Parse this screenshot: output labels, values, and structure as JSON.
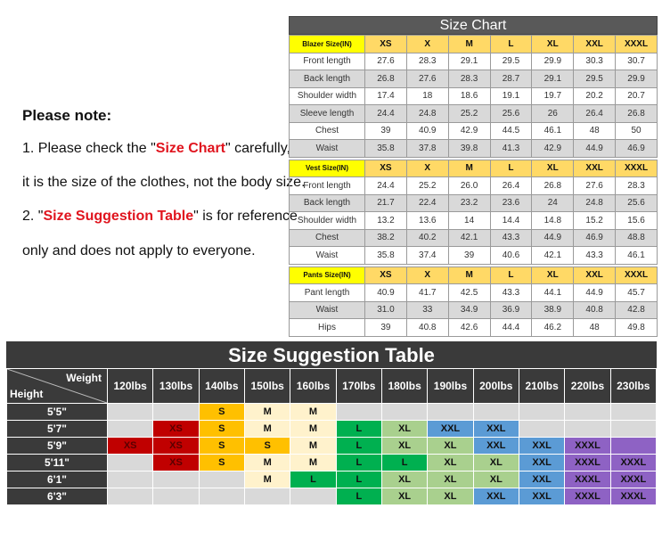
{
  "note": {
    "heading": "Please note:",
    "line1_pre": "1. Please check the \"",
    "line1_red": "Size Chart",
    "line1_post": "\" carefully,",
    "line2": "it is the size of the clothes, not the body size.",
    "line3_pre": "2. \"",
    "line3_red": "Size Suggestion Table",
    "line3_post": "\" is for reference",
    "line4": "only and does not apply to everyone."
  },
  "size_chart": {
    "title": "Size Chart",
    "sizes": [
      "XS",
      "X",
      "M",
      "L",
      "XL",
      "XXL",
      "XXXL"
    ],
    "sections": [
      {
        "label": "Blazer Size(IN)",
        "rows": [
          {
            "name": "Front length",
            "values": [
              "27.6",
              "28.3",
              "29.1",
              "29.5",
              "29.9",
              "30.3",
              "30.7"
            ]
          },
          {
            "name": "Back length",
            "values": [
              "26.8",
              "27.6",
              "28.3",
              "28.7",
              "29.1",
              "29.5",
              "29.9"
            ]
          },
          {
            "name": "Shoulder width",
            "values": [
              "17.4",
              "18",
              "18.6",
              "19.1",
              "19.7",
              "20.2",
              "20.7"
            ]
          },
          {
            "name": "Sleeve length",
            "values": [
              "24.4",
              "24.8",
              "25.2",
              "25.6",
              "26",
              "26.4",
              "26.8"
            ]
          },
          {
            "name": "Chest",
            "values": [
              "39",
              "40.9",
              "42.9",
              "44.5",
              "46.1",
              "48",
              "50"
            ]
          },
          {
            "name": "Waist",
            "values": [
              "35.8",
              "37.8",
              "39.8",
              "41.3",
              "42.9",
              "44.9",
              "46.9"
            ]
          }
        ]
      },
      {
        "label": "Vest Size(IN)",
        "rows": [
          {
            "name": "Front length",
            "values": [
              "24.4",
              "25.2",
              "26.0",
              "26.4",
              "26.8",
              "27.6",
              "28.3"
            ]
          },
          {
            "name": "Back length",
            "values": [
              "21.7",
              "22.4",
              "23.2",
              "23.6",
              "24",
              "24.8",
              "25.6"
            ]
          },
          {
            "name": "Shoulder width",
            "values": [
              "13.2",
              "13.6",
              "14",
              "14.4",
              "14.8",
              "15.2",
              "15.6"
            ]
          },
          {
            "name": "Chest",
            "values": [
              "38.2",
              "40.2",
              "42.1",
              "43.3",
              "44.9",
              "46.9",
              "48.8"
            ]
          },
          {
            "name": "Waist",
            "values": [
              "35.8",
              "37.4",
              "39",
              "40.6",
              "42.1",
              "43.3",
              "46.1"
            ]
          }
        ]
      },
      {
        "label": "Pants Size(IN)",
        "rows": [
          {
            "name": "Pant length",
            "values": [
              "40.9",
              "41.7",
              "42.5",
              "43.3",
              "44.1",
              "44.9",
              "45.7"
            ]
          },
          {
            "name": "Waist",
            "values": [
              "31.0",
              "33",
              "34.9",
              "36.9",
              "38.9",
              "40.8",
              "42.8"
            ]
          },
          {
            "name": "Hips",
            "values": [
              "39",
              "40.8",
              "42.6",
              "44.4",
              "46.2",
              "48",
              "49.8"
            ]
          }
        ]
      }
    ]
  },
  "suggestion": {
    "title": "Size Suggestion Table",
    "weight_label": "Weight",
    "height_label": "Height",
    "weights": [
      "120lbs",
      "130lbs",
      "140lbs",
      "150lbs",
      "160lbs",
      "170lbs",
      "180lbs",
      "190lbs",
      "200lbs",
      "210lbs",
      "220lbs",
      "230lbs"
    ],
    "colors": {
      "": "#d9d9d9",
      "XS": "#c00000",
      "S": "#ffc000",
      "M": "#fff2cc",
      "L": "#00b050",
      "XL": "#a9d08e",
      "XXL": "#5b9bd5",
      "XXXL": "#8e62c4"
    },
    "rows": [
      {
        "height": "5'5\"",
        "cells": [
          "",
          "",
          "S",
          "M",
          "M",
          "",
          "",
          "",
          "",
          "",
          "",
          ""
        ]
      },
      {
        "height": "5'7\"",
        "cells": [
          "",
          "XS",
          "S",
          "M",
          "M",
          "L",
          "XL",
          "XXL",
          "XXL",
          "",
          "",
          ""
        ]
      },
      {
        "height": "5'9\"",
        "cells": [
          "XS",
          "XS",
          "S",
          "S",
          "M",
          "L",
          "XL",
          "XL",
          "XXL",
          "XXL",
          "XXXL",
          ""
        ],
        "blank_fills": {
          "11": "XXXL"
        }
      },
      {
        "height": "5'11\"",
        "cells": [
          "",
          "XS",
          "S",
          "M",
          "M",
          "L",
          "L",
          "XL",
          "XL",
          "XXL",
          "XXXL",
          "XXXL"
        ]
      },
      {
        "height": "6'1\"",
        "cells": [
          "",
          "",
          "",
          "M",
          "L",
          "L",
          "XL",
          "XL",
          "XL",
          "XXL",
          "XXXL",
          "XXXL"
        ]
      },
      {
        "height": "6'3\"",
        "cells": [
          "",
          "",
          "",
          "",
          "",
          "L",
          "XL",
          "XL",
          "XXL",
          "XXL",
          "XXXL",
          "XXXL"
        ]
      }
    ]
  }
}
